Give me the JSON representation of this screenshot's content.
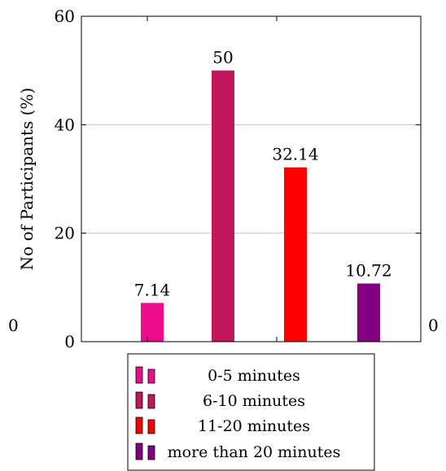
{
  "chart_data": {
    "type": "bar",
    "categories": [
      "0-5 minutes",
      "6-10 minutes",
      "11-20 minutes",
      "more than 20 minutes"
    ],
    "values": [
      7.14,
      50,
      32.14,
      10.72
    ],
    "data_labels": [
      "7.14",
      "50",
      "32.14",
      "10.72"
    ],
    "colors": [
      "#ec0c8c",
      "#c2185b",
      "#ff0000",
      "#800080"
    ],
    "ylabel": "No of Participants (%)",
    "xlabel": "",
    "title": "",
    "ylim": [
      0,
      60
    ],
    "yticks": [
      "0",
      "20",
      "40",
      "60"
    ],
    "secondary_axis_labels": [
      "0",
      "0"
    ],
    "grid": "horizontal",
    "legend_position": "bottom"
  }
}
